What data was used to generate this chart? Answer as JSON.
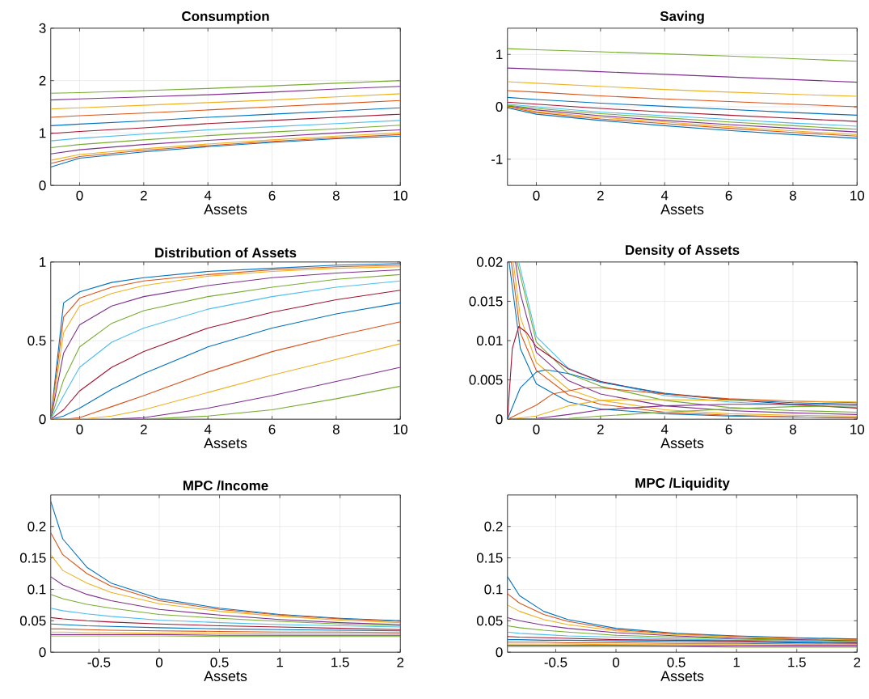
{
  "chart_data": [
    {
      "type": "line",
      "title": "Consumption",
      "xlabel": "Assets",
      "xlim": [
        -0.9,
        10
      ],
      "xticks": [
        0,
        2,
        4,
        6,
        8,
        10
      ],
      "ylim": [
        0,
        3
      ],
      "yticks": [
        0,
        1,
        2,
        3
      ],
      "grid": true,
      "x": [
        -0.9,
        0,
        2,
        4,
        6,
        8,
        10
      ],
      "series": [
        {
          "color": "#0072bd",
          "values": [
            0.35,
            0.52,
            0.64,
            0.74,
            0.82,
            0.89,
            0.94
          ]
        },
        {
          "color": "#d95319",
          "values": [
            0.42,
            0.55,
            0.67,
            0.76,
            0.84,
            0.91,
            0.97
          ]
        },
        {
          "color": "#edb120",
          "values": [
            0.48,
            0.59,
            0.7,
            0.79,
            0.87,
            0.94,
            1.0
          ]
        },
        {
          "color": "#7e2f8e",
          "values": [
            0.6,
            0.68,
            0.78,
            0.86,
            0.93,
            1.0,
            1.06
          ]
        },
        {
          "color": "#77ac30",
          "values": [
            0.72,
            0.78,
            0.87,
            0.95,
            1.02,
            1.08,
            1.15
          ]
        },
        {
          "color": "#4dbeee",
          "values": [
            0.85,
            0.9,
            0.98,
            1.06,
            1.12,
            1.18,
            1.24
          ]
        },
        {
          "color": "#a2142f",
          "values": [
            0.99,
            1.03,
            1.1,
            1.18,
            1.24,
            1.3,
            1.36
          ]
        },
        {
          "color": "#0072bd",
          "values": [
            1.14,
            1.17,
            1.23,
            1.3,
            1.36,
            1.42,
            1.48
          ]
        },
        {
          "color": "#d95319",
          "values": [
            1.3,
            1.33,
            1.38,
            1.44,
            1.5,
            1.56,
            1.62
          ]
        },
        {
          "color": "#edb120",
          "values": [
            1.46,
            1.48,
            1.53,
            1.58,
            1.63,
            1.69,
            1.75
          ]
        },
        {
          "color": "#7e2f8e",
          "values": [
            1.63,
            1.65,
            1.69,
            1.73,
            1.78,
            1.84,
            1.89
          ]
        },
        {
          "color": "#77ac30",
          "values": [
            1.76,
            1.77,
            1.81,
            1.85,
            1.9,
            1.95,
            2.0
          ]
        }
      ]
    },
    {
      "type": "line",
      "title": "Saving",
      "xlabel": "Assets",
      "xlim": [
        -0.9,
        10
      ],
      "xticks": [
        0,
        2,
        4,
        6,
        8,
        10
      ],
      "ylim": [
        -1.5,
        1.5
      ],
      "yticks": [
        -1,
        0,
        1
      ],
      "grid": true,
      "x": [
        -0.9,
        0,
        2,
        4,
        6,
        8,
        10
      ],
      "series": [
        {
          "color": "#0072bd",
          "values": [
            -0.02,
            -0.14,
            -0.26,
            -0.36,
            -0.45,
            -0.53,
            -0.6
          ]
        },
        {
          "color": "#d95319",
          "values": [
            0.0,
            -0.11,
            -0.23,
            -0.32,
            -0.41,
            -0.49,
            -0.56
          ]
        },
        {
          "color": "#edb120",
          "values": [
            0.01,
            -0.09,
            -0.2,
            -0.29,
            -0.38,
            -0.46,
            -0.53
          ]
        },
        {
          "color": "#7e2f8e",
          "values": [
            0.02,
            -0.06,
            -0.17,
            -0.26,
            -0.34,
            -0.41,
            -0.48
          ]
        },
        {
          "color": "#77ac30",
          "values": [
            0.03,
            -0.03,
            -0.13,
            -0.21,
            -0.29,
            -0.36,
            -0.43
          ]
        },
        {
          "color": "#4dbeee",
          "values": [
            0.05,
            0.0,
            -0.1,
            -0.17,
            -0.24,
            -0.31,
            -0.37
          ]
        },
        {
          "color": "#a2142f",
          "values": [
            0.09,
            0.05,
            -0.03,
            -0.1,
            -0.16,
            -0.22,
            -0.28
          ]
        },
        {
          "color": "#0072bd",
          "values": [
            0.18,
            0.14,
            0.07,
            0.01,
            -0.05,
            -0.11,
            -0.16
          ]
        },
        {
          "color": "#d95319",
          "values": [
            0.31,
            0.28,
            0.21,
            0.15,
            0.1,
            0.05,
            0.0
          ]
        },
        {
          "color": "#edb120",
          "values": [
            0.48,
            0.45,
            0.39,
            0.33,
            0.28,
            0.24,
            0.2
          ]
        },
        {
          "color": "#7e2f8e",
          "values": [
            0.74,
            0.72,
            0.67,
            0.62,
            0.57,
            0.52,
            0.47
          ]
        },
        {
          "color": "#77ac30",
          "values": [
            1.11,
            1.09,
            1.05,
            1.01,
            0.97,
            0.92,
            0.87
          ]
        }
      ]
    },
    {
      "type": "line",
      "title": "Distribution of Assets",
      "xlabel": "Assets",
      "xlim": [
        -0.9,
        10
      ],
      "xticks": [
        0,
        2,
        4,
        6,
        8,
        10
      ],
      "ylim": [
        0,
        1
      ],
      "yticks": [
        0,
        0.5,
        1
      ],
      "grid": true,
      "x": [
        -0.9,
        -0.5,
        0,
        1,
        2,
        4,
        6,
        8,
        10
      ],
      "series": [
        {
          "color": "#0072bd",
          "values": [
            0,
            0.74,
            0.81,
            0.87,
            0.9,
            0.94,
            0.96,
            0.98,
            0.99
          ]
        },
        {
          "color": "#d95319",
          "values": [
            0,
            0.65,
            0.77,
            0.84,
            0.88,
            0.92,
            0.95,
            0.97,
            0.98
          ]
        },
        {
          "color": "#edb120",
          "values": [
            0,
            0.55,
            0.72,
            0.8,
            0.85,
            0.91,
            0.94,
            0.96,
            0.97
          ]
        },
        {
          "color": "#7e2f8e",
          "values": [
            0,
            0.42,
            0.6,
            0.72,
            0.78,
            0.85,
            0.9,
            0.93,
            0.95
          ]
        },
        {
          "color": "#77ac30",
          "values": [
            0,
            0.25,
            0.46,
            0.61,
            0.69,
            0.78,
            0.84,
            0.89,
            0.92
          ]
        },
        {
          "color": "#4dbeee",
          "values": [
            0,
            0.15,
            0.33,
            0.49,
            0.58,
            0.7,
            0.78,
            0.84,
            0.88
          ]
        },
        {
          "color": "#a2142f",
          "values": [
            0,
            0.06,
            0.18,
            0.33,
            0.43,
            0.58,
            0.68,
            0.76,
            0.82
          ]
        },
        {
          "color": "#0072bd",
          "values": [
            0,
            0.02,
            0.07,
            0.19,
            0.29,
            0.46,
            0.58,
            0.67,
            0.74
          ]
        },
        {
          "color": "#d95319",
          "values": [
            0,
            0,
            0.01,
            0.08,
            0.15,
            0.3,
            0.43,
            0.53,
            0.62
          ]
        },
        {
          "color": "#edb120",
          "values": [
            0,
            0,
            0,
            0.02,
            0.06,
            0.17,
            0.28,
            0.38,
            0.48
          ]
        },
        {
          "color": "#7e2f8e",
          "x": [
            1,
            2,
            4,
            6,
            8,
            10
          ],
          "values": [
            0,
            0.01,
            0.07,
            0.15,
            0.24,
            0.33
          ]
        },
        {
          "color": "#77ac30",
          "x": [
            2,
            4,
            6,
            8,
            10
          ],
          "values": [
            0,
            0.02,
            0.06,
            0.13,
            0.21
          ]
        }
      ]
    },
    {
      "type": "line",
      "title": "Density of Assets",
      "xlabel": "Assets",
      "xlim": [
        -0.9,
        10
      ],
      "xticks": [
        0,
        2,
        4,
        6,
        8,
        10
      ],
      "ylim": [
        0,
        0.02
      ],
      "yticks": [
        0,
        0.005,
        0.01,
        0.015,
        0.02
      ],
      "grid": true,
      "series": [
        {
          "color": "#0072bd",
          "x": [
            -0.85,
            -0.5,
            0,
            1,
            2,
            4,
            6,
            8,
            10
          ],
          "values": [
            0.02,
            0.009,
            0.0045,
            0.0022,
            0.0013,
            0.0007,
            0.0004,
            0.0003,
            0.0002
          ]
        },
        {
          "color": "#d95319",
          "x": [
            -0.78,
            -0.5,
            0,
            1,
            2,
            4,
            6,
            8,
            10
          ],
          "values": [
            0.02,
            0.011,
            0.0062,
            0.0031,
            0.0019,
            0.0009,
            0.0005,
            0.0003,
            0.0002
          ]
        },
        {
          "color": "#edb120",
          "x": [
            -0.72,
            -0.5,
            0,
            1,
            2,
            4,
            6,
            8,
            10
          ],
          "values": [
            0.02,
            0.013,
            0.0072,
            0.0038,
            0.0024,
            0.0012,
            0.0007,
            0.0005,
            0.0004
          ]
        },
        {
          "color": "#7e2f8e",
          "x": [
            -0.65,
            -0.5,
            0,
            1,
            2,
            4,
            6,
            8,
            10
          ],
          "values": [
            0.02,
            0.016,
            0.0085,
            0.0049,
            0.0032,
            0.0017,
            0.0011,
            0.0008,
            0.0006
          ]
        },
        {
          "color": "#77ac30",
          "x": [
            -0.6,
            0,
            1,
            2,
            4,
            6,
            8,
            10
          ],
          "values": [
            0.02,
            0.0098,
            0.0058,
            0.0042,
            0.0024,
            0.0015,
            0.0011,
            0.0009
          ]
        },
        {
          "color": "#4dbeee",
          "x": [
            -0.55,
            0,
            1,
            2,
            4,
            6,
            8,
            10
          ],
          "values": [
            0.02,
            0.0105,
            0.0065,
            0.0048,
            0.003,
            0.0022,
            0.0018,
            0.0015
          ]
        },
        {
          "color": "#a2142f",
          "x": [
            -0.9,
            -0.75,
            -0.55,
            -0.3,
            0,
            1,
            2,
            4,
            6,
            8,
            10
          ],
          "values": [
            0,
            0.009,
            0.0118,
            0.011,
            0.0092,
            0.0064,
            0.0048,
            0.0032,
            0.0025,
            0.0019,
            0.0014
          ]
        },
        {
          "color": "#0072bd",
          "x": [
            -0.9,
            -0.5,
            0,
            0.3,
            1,
            2,
            4,
            6,
            8,
            10
          ],
          "values": [
            0,
            0.004,
            0.006,
            0.0063,
            0.0058,
            0.0047,
            0.0033,
            0.0025,
            0.0021,
            0.0019
          ]
        },
        {
          "color": "#d95319",
          "x": [
            -0.9,
            0,
            0.5,
            1.5,
            2,
            4,
            6,
            8,
            10
          ],
          "values": [
            0,
            0.0018,
            0.0032,
            0.004,
            0.004,
            0.0032,
            0.0026,
            0.0023,
            0.0021
          ]
        },
        {
          "color": "#edb120",
          "x": [
            -0.9,
            0,
            1,
            2,
            3,
            4,
            6,
            8,
            10
          ],
          "values": [
            0,
            0.0004,
            0.0017,
            0.0024,
            0.0025,
            0.0025,
            0.0024,
            0.0023,
            0.0022
          ]
        },
        {
          "color": "#7e2f8e",
          "x": [
            -0.9,
            0,
            1,
            2,
            4,
            6,
            8,
            10
          ],
          "values": [
            0,
            0.0001,
            0.0006,
            0.0012,
            0.0017,
            0.0019,
            0.0019,
            0.0019
          ]
        },
        {
          "color": "#77ac30",
          "x": [
            -0.9,
            1,
            2,
            4,
            6,
            8,
            10
          ],
          "values": [
            0,
            0.0001,
            0.0004,
            0.0009,
            0.0013,
            0.0016,
            0.0017
          ]
        }
      ]
    },
    {
      "type": "line",
      "title": "MPC /Income",
      "xlabel": "Assets",
      "xlim": [
        -0.9,
        2
      ],
      "xticks": [
        -0.5,
        0,
        0.5,
        1,
        1.5,
        2
      ],
      "ylim": [
        0,
        0.25
      ],
      "yticks": [
        0,
        0.05,
        0.1,
        0.15,
        0.2
      ],
      "grid": true,
      "x": [
        -0.9,
        -0.8,
        -0.6,
        -0.4,
        0,
        0.5,
        1,
        1.5,
        2
      ],
      "series": [
        {
          "color": "#0072bd",
          "values": [
            0.24,
            0.18,
            0.135,
            0.11,
            0.085,
            0.07,
            0.06,
            0.054,
            0.05
          ]
        },
        {
          "color": "#d95319",
          "values": [
            0.19,
            0.155,
            0.125,
            0.105,
            0.082,
            0.068,
            0.059,
            0.053,
            0.049
          ]
        },
        {
          "color": "#edb120",
          "values": [
            0.155,
            0.13,
            0.11,
            0.095,
            0.077,
            0.065,
            0.057,
            0.051,
            0.047
          ]
        },
        {
          "color": "#7e2f8e",
          "values": [
            0.12,
            0.107,
            0.092,
            0.082,
            0.068,
            0.059,
            0.052,
            0.047,
            0.044
          ]
        },
        {
          "color": "#77ac30",
          "values": [
            0.092,
            0.085,
            0.076,
            0.07,
            0.06,
            0.054,
            0.049,
            0.045,
            0.042
          ]
        },
        {
          "color": "#4dbeee",
          "values": [
            0.07,
            0.066,
            0.061,
            0.057,
            0.051,
            0.047,
            0.044,
            0.042,
            0.04
          ]
        },
        {
          "color": "#a2142f",
          "values": [
            0.055,
            0.053,
            0.05,
            0.048,
            0.045,
            0.042,
            0.04,
            0.038,
            0.036
          ]
        },
        {
          "color": "#0072bd",
          "values": [
            0.045,
            0.044,
            0.042,
            0.041,
            0.039,
            0.037,
            0.036,
            0.035,
            0.034
          ]
        },
        {
          "color": "#d95319",
          "values": [
            0.037,
            0.037,
            0.036,
            0.035,
            0.034,
            0.033,
            0.032,
            0.032,
            0.031
          ]
        },
        {
          "color": "#edb120",
          "values": [
            0.032,
            0.032,
            0.031,
            0.031,
            0.03,
            0.03,
            0.029,
            0.029,
            0.029
          ]
        },
        {
          "color": "#7e2f8e",
          "values": [
            0.028,
            0.028,
            0.028,
            0.028,
            0.028,
            0.027,
            0.027,
            0.027,
            0.027
          ]
        },
        {
          "color": "#77ac30",
          "values": [
            0.026,
            0.026,
            0.026,
            0.026,
            0.026,
            0.025,
            0.025,
            0.025,
            0.025
          ]
        }
      ]
    },
    {
      "type": "line",
      "title": "MPC /Liquidity",
      "xlabel": "Assets",
      "xlim": [
        -0.9,
        2
      ],
      "xticks": [
        -0.5,
        0,
        0.5,
        1,
        1.5,
        2
      ],
      "ylim": [
        0,
        0.25
      ],
      "yticks": [
        0,
        0.05,
        0.1,
        0.15,
        0.2
      ],
      "grid": true,
      "x": [
        -0.9,
        -0.8,
        -0.6,
        -0.4,
        0,
        0.5,
        1,
        1.5,
        2
      ],
      "series": [
        {
          "color": "#0072bd",
          "values": [
            0.12,
            0.09,
            0.065,
            0.052,
            0.038,
            0.03,
            0.026,
            0.023,
            0.021
          ]
        },
        {
          "color": "#d95319",
          "values": [
            0.093,
            0.078,
            0.06,
            0.049,
            0.036,
            0.029,
            0.025,
            0.022,
            0.02
          ]
        },
        {
          "color": "#edb120",
          "values": [
            0.075,
            0.065,
            0.052,
            0.044,
            0.034,
            0.028,
            0.024,
            0.021,
            0.019
          ]
        },
        {
          "color": "#7e2f8e",
          "values": [
            0.055,
            0.05,
            0.043,
            0.038,
            0.031,
            0.026,
            0.022,
            0.02,
            0.018
          ]
        },
        {
          "color": "#77ac30",
          "values": [
            0.042,
            0.039,
            0.035,
            0.032,
            0.027,
            0.024,
            0.021,
            0.019,
            0.017
          ]
        },
        {
          "color": "#4dbeee",
          "values": [
            0.032,
            0.03,
            0.028,
            0.026,
            0.024,
            0.021,
            0.019,
            0.018,
            0.016
          ]
        },
        {
          "color": "#a2142f",
          "values": [
            0.025,
            0.024,
            0.023,
            0.022,
            0.02,
            0.019,
            0.018,
            0.016,
            0.015
          ]
        },
        {
          "color": "#0072bd",
          "values": [
            0.02,
            0.02,
            0.019,
            0.019,
            0.018,
            0.017,
            0.016,
            0.015,
            0.014
          ]
        },
        {
          "color": "#d95319",
          "values": [
            0.016,
            0.016,
            0.016,
            0.015,
            0.015,
            0.014,
            0.014,
            0.013,
            0.013
          ]
        },
        {
          "color": "#edb120",
          "values": [
            0.013,
            0.013,
            0.013,
            0.013,
            0.012,
            0.012,
            0.012,
            0.011,
            0.011
          ]
        },
        {
          "color": "#7e2f8e",
          "values": [
            0.011,
            0.011,
            0.011,
            0.011,
            0.011,
            0.01,
            0.01,
            0.01,
            0.01
          ]
        },
        {
          "color": "#77ac30",
          "values": [
            0.009,
            0.009,
            0.009,
            0.009,
            0.009,
            0.009,
            0.008,
            0.008,
            0.008
          ]
        }
      ]
    }
  ]
}
